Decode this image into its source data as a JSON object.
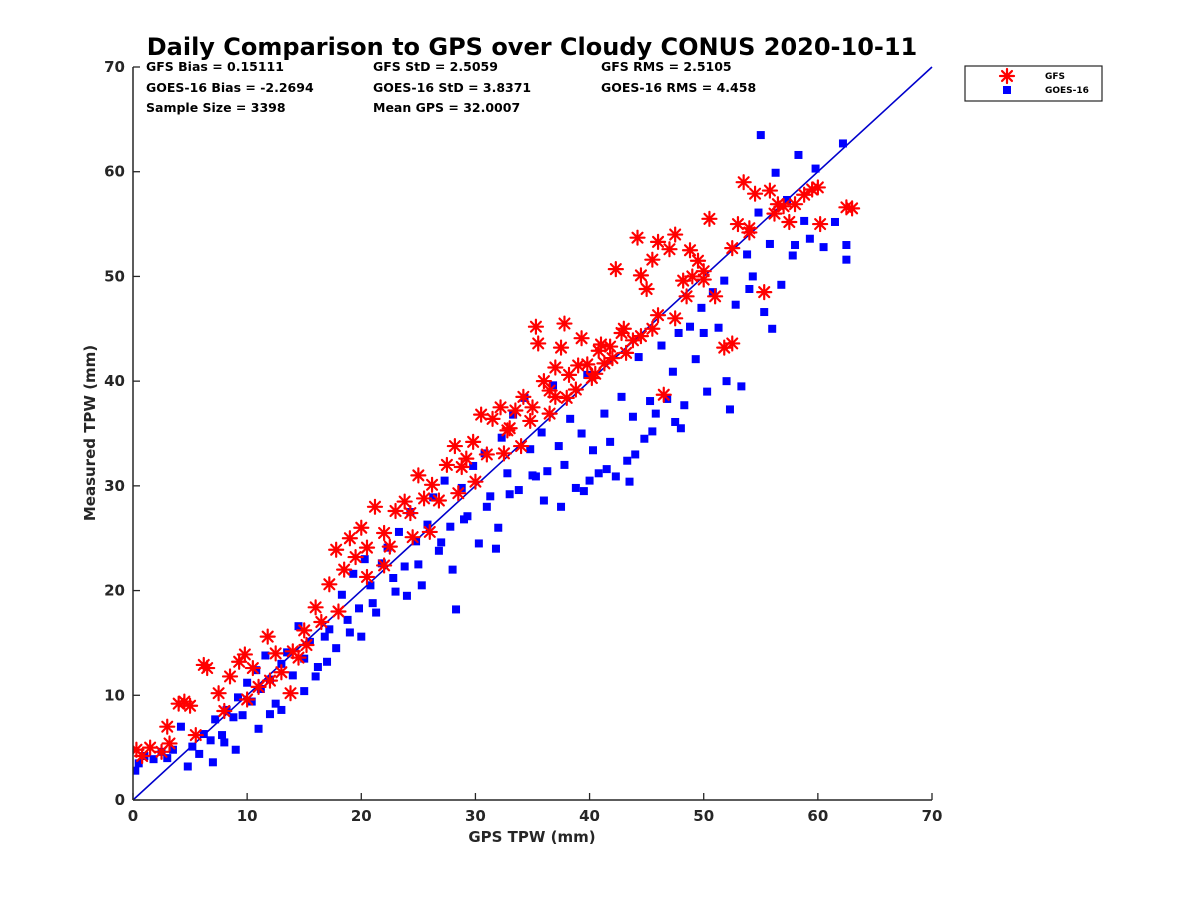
{
  "chart_data": {
    "type": "scatter",
    "title": "Daily Comparison to GPS over Cloudy CONUS 2020-10-11",
    "xlabel": "GPS TPW (mm)",
    "ylabel": "Measured TPW (mm)",
    "xlim": [
      0,
      70
    ],
    "ylim": [
      0,
      70
    ],
    "xticks": [
      "0",
      "10",
      "20",
      "30",
      "40",
      "50",
      "60",
      "70"
    ],
    "yticks": [
      "0",
      "10",
      "20",
      "30",
      "40",
      "50",
      "60",
      "70"
    ],
    "grid": false,
    "legend_position": "outside-top-right",
    "reference_line": {
      "x": [
        0,
        70
      ],
      "y": [
        0,
        70
      ],
      "color": "#0000cc"
    },
    "stats": [
      "GFS Bias = 0.15111",
      "GFS StD = 2.5059",
      "GFS RMS = 2.5105",
      "GOES-16 Bias = -2.2694",
      "GOES-16 StD = 3.8371",
      "GOES-16 RMS = 4.458",
      "Sample Size = 3398",
      "Mean GPS = 32.0007"
    ],
    "series": [
      {
        "name": "GFS",
        "marker": "asterisk",
        "color": "#ff0000",
        "points": [
          [
            0.3,
            4.8
          ],
          [
            0.8,
            4.2
          ],
          [
            1.5,
            5.0
          ],
          [
            2.5,
            4.6
          ],
          [
            3.2,
            5.4
          ],
          [
            4.0,
            9.2
          ],
          [
            4.5,
            9.4
          ],
          [
            5.0,
            9.0
          ],
          [
            6.2,
            12.9
          ],
          [
            6.5,
            12.6
          ],
          [
            7.5,
            10.2
          ],
          [
            8.5,
            11.8
          ],
          [
            9.3,
            13.2
          ],
          [
            9.8,
            13.9
          ],
          [
            10.5,
            12.6
          ],
          [
            11.0,
            10.8
          ],
          [
            11.8,
            15.6
          ],
          [
            12.5,
            14.0
          ],
          [
            13.0,
            12.2
          ],
          [
            13.8,
            10.2
          ],
          [
            14.5,
            13.6
          ],
          [
            15.2,
            14.8
          ],
          [
            16.0,
            18.4
          ],
          [
            16.5,
            17.0
          ],
          [
            17.2,
            20.6
          ],
          [
            17.8,
            23.9
          ],
          [
            18.5,
            22.0
          ],
          [
            19.0,
            25.0
          ],
          [
            19.5,
            23.2
          ],
          [
            20.0,
            26.0
          ],
          [
            20.5,
            24.1
          ],
          [
            21.2,
            28.0
          ],
          [
            22.0,
            25.5
          ],
          [
            22.5,
            24.2
          ],
          [
            23.0,
            27.6
          ],
          [
            23.8,
            28.5
          ],
          [
            24.3,
            27.4
          ],
          [
            25.0,
            31.0
          ],
          [
            25.5,
            28.8
          ],
          [
            26.2,
            30.1
          ],
          [
            26.8,
            28.6
          ],
          [
            27.5,
            32.0
          ],
          [
            28.2,
            33.8
          ],
          [
            28.8,
            31.8
          ],
          [
            29.2,
            32.6
          ],
          [
            29.8,
            34.2
          ],
          [
            30.5,
            36.8
          ],
          [
            31.0,
            33.0
          ],
          [
            31.5,
            36.4
          ],
          [
            32.2,
            37.5
          ],
          [
            32.8,
            35.3
          ],
          [
            33.5,
            37.2
          ],
          [
            34.2,
            38.5
          ],
          [
            34.8,
            36.2
          ],
          [
            35.3,
            45.2
          ],
          [
            35.5,
            43.6
          ],
          [
            36.0,
            40.0
          ],
          [
            36.5,
            39.1
          ],
          [
            37.0,
            41.3
          ],
          [
            37.5,
            43.2
          ],
          [
            37.8,
            45.5
          ],
          [
            38.2,
            40.6
          ],
          [
            38.8,
            39.2
          ],
          [
            39.3,
            44.1
          ],
          [
            39.8,
            41.6
          ],
          [
            40.2,
            40.3
          ],
          [
            40.8,
            42.9
          ],
          [
            41.3,
            41.7
          ],
          [
            41.8,
            43.3
          ],
          [
            42.3,
            50.7
          ],
          [
            42.8,
            44.6
          ],
          [
            43.2,
            42.7
          ],
          [
            43.8,
            43.9
          ],
          [
            44.2,
            53.7
          ],
          [
            44.5,
            50.1
          ],
          [
            45.0,
            48.8
          ],
          [
            45.5,
            51.6
          ],
          [
            46.0,
            53.3
          ],
          [
            46.5,
            38.7
          ],
          [
            47.0,
            52.6
          ],
          [
            47.5,
            54.0
          ],
          [
            48.2,
            49.6
          ],
          [
            48.8,
            52.5
          ],
          [
            49.5,
            51.5
          ],
          [
            50.0,
            50.5
          ],
          [
            50.5,
            55.5
          ],
          [
            51.0,
            48.1
          ],
          [
            51.8,
            43.2
          ],
          [
            52.5,
            43.6
          ],
          [
            53.0,
            55.0
          ],
          [
            53.5,
            59.0
          ],
          [
            54.0,
            54.6
          ],
          [
            54.5,
            57.9
          ],
          [
            55.3,
            48.5
          ],
          [
            55.8,
            58.2
          ],
          [
            56.2,
            56.0
          ],
          [
            57.0,
            56.7
          ],
          [
            57.5,
            55.2
          ],
          [
            58.0,
            56.9
          ],
          [
            58.8,
            57.8
          ],
          [
            59.5,
            58.3
          ],
          [
            60.2,
            55.0
          ],
          [
            60.0,
            58.5
          ],
          [
            62.5,
            56.6
          ],
          [
            63.0,
            56.5
          ],
          [
            3.0,
            7.0
          ],
          [
            5.5,
            6.2
          ],
          [
            8.0,
            8.5
          ],
          [
            10.0,
            9.6
          ],
          [
            12.0,
            11.4
          ],
          [
            14.0,
            14.2
          ],
          [
            18.0,
            18.0
          ],
          [
            22.0,
            22.4
          ],
          [
            26.0,
            25.6
          ],
          [
            30.0,
            30.4
          ],
          [
            34.0,
            33.8
          ],
          [
            38.0,
            38.4
          ],
          [
            42.0,
            42.2
          ],
          [
            46.0,
            46.3
          ],
          [
            50.0,
            49.7
          ],
          [
            54.0,
            54.2
          ],
          [
            15.0,
            16.2
          ],
          [
            20.5,
            21.3
          ],
          [
            24.5,
            25.1
          ],
          [
            28.5,
            29.3
          ],
          [
            32.5,
            33.1
          ],
          [
            36.5,
            36.9
          ],
          [
            40.5,
            40.7
          ],
          [
            44.5,
            44.3
          ],
          [
            48.5,
            48.1
          ],
          [
            52.5,
            52.7
          ],
          [
            56.5,
            56.9
          ],
          [
            39.0,
            41.5
          ],
          [
            41.0,
            43.5
          ],
          [
            43.0,
            45.0
          ],
          [
            37.0,
            38.5
          ],
          [
            35.0,
            37.5
          ],
          [
            33.0,
            35.5
          ],
          [
            45.5,
            45.0
          ],
          [
            47.5,
            46.0
          ],
          [
            49.0,
            50.0
          ]
        ]
      },
      {
        "name": "GOES-16",
        "marker": "square",
        "color": "#0000ff",
        "points": [
          [
            0.2,
            2.8
          ],
          [
            0.5,
            3.5
          ],
          [
            1.0,
            4.2
          ],
          [
            1.8,
            3.9
          ],
          [
            2.5,
            4.6
          ],
          [
            3.0,
            4.0
          ],
          [
            3.5,
            4.8
          ],
          [
            4.2,
            7.0
          ],
          [
            4.8,
            3.2
          ],
          [
            5.2,
            5.1
          ],
          [
            5.8,
            4.4
          ],
          [
            6.2,
            6.3
          ],
          [
            6.8,
            5.7
          ],
          [
            7.2,
            7.7
          ],
          [
            7.8,
            6.2
          ],
          [
            8.2,
            8.6
          ],
          [
            8.8,
            7.9
          ],
          [
            9.2,
            9.8
          ],
          [
            9.6,
            8.1
          ],
          [
            10.0,
            11.2
          ],
          [
            10.4,
            9.4
          ],
          [
            10.8,
            12.4
          ],
          [
            11.2,
            10.6
          ],
          [
            11.6,
            13.8
          ],
          [
            12.0,
            11.5
          ],
          [
            12.5,
            9.2
          ],
          [
            13.0,
            13.0
          ],
          [
            13.5,
            14.1
          ],
          [
            14.0,
            11.9
          ],
          [
            14.5,
            16.6
          ],
          [
            15.0,
            13.5
          ],
          [
            15.5,
            15.1
          ],
          [
            16.2,
            12.7
          ],
          [
            16.8,
            15.6
          ],
          [
            17.2,
            16.3
          ],
          [
            17.8,
            14.5
          ],
          [
            18.3,
            19.6
          ],
          [
            18.8,
            17.2
          ],
          [
            19.3,
            21.6
          ],
          [
            19.8,
            18.3
          ],
          [
            20.3,
            23.0
          ],
          [
            20.8,
            20.5
          ],
          [
            21.3,
            17.9
          ],
          [
            21.8,
            22.6
          ],
          [
            22.3,
            24.1
          ],
          [
            22.8,
            21.2
          ],
          [
            23.3,
            25.6
          ],
          [
            23.8,
            22.3
          ],
          [
            24.3,
            27.5
          ],
          [
            24.8,
            24.7
          ],
          [
            25.3,
            20.5
          ],
          [
            25.8,
            26.3
          ],
          [
            26.3,
            28.9
          ],
          [
            26.8,
            23.8
          ],
          [
            27.3,
            30.5
          ],
          [
            27.8,
            26.1
          ],
          [
            28.3,
            18.2
          ],
          [
            28.8,
            29.8
          ],
          [
            29.3,
            27.1
          ],
          [
            29.8,
            31.9
          ],
          [
            30.3,
            24.5
          ],
          [
            30.8,
            33.1
          ],
          [
            31.3,
            29.0
          ],
          [
            31.8,
            24.0
          ],
          [
            32.3,
            34.6
          ],
          [
            32.8,
            31.2
          ],
          [
            33.3,
            36.8
          ],
          [
            33.8,
            29.6
          ],
          [
            34.3,
            38.4
          ],
          [
            34.8,
            33.5
          ],
          [
            35.3,
            30.9
          ],
          [
            35.8,
            35.1
          ],
          [
            36.3,
            31.4
          ],
          [
            36.8,
            39.6
          ],
          [
            37.3,
            33.8
          ],
          [
            37.8,
            32.0
          ],
          [
            38.3,
            36.4
          ],
          [
            38.8,
            29.8
          ],
          [
            39.3,
            35.0
          ],
          [
            39.8,
            40.6
          ],
          [
            40.3,
            33.4
          ],
          [
            40.8,
            31.2
          ],
          [
            41.3,
            36.9
          ],
          [
            41.8,
            34.2
          ],
          [
            42.3,
            30.9
          ],
          [
            42.8,
            38.5
          ],
          [
            43.3,
            32.4
          ],
          [
            43.8,
            36.6
          ],
          [
            44.3,
            42.3
          ],
          [
            44.8,
            34.5
          ],
          [
            45.3,
            38.1
          ],
          [
            45.8,
            36.9
          ],
          [
            46.3,
            43.4
          ],
          [
            46.8,
            38.3
          ],
          [
            47.3,
            40.9
          ],
          [
            47.8,
            44.6
          ],
          [
            48.3,
            37.7
          ],
          [
            48.8,
            45.2
          ],
          [
            49.3,
            42.1
          ],
          [
            49.8,
            47.0
          ],
          [
            50.3,
            39.0
          ],
          [
            50.8,
            48.5
          ],
          [
            51.3,
            45.1
          ],
          [
            51.8,
            49.6
          ],
          [
            52.3,
            37.3
          ],
          [
            52.8,
            47.3
          ],
          [
            53.3,
            39.5
          ],
          [
            53.8,
            52.1
          ],
          [
            54.3,
            50.0
          ],
          [
            54.8,
            56.1
          ],
          [
            55.0,
            63.5
          ],
          [
            55.3,
            46.6
          ],
          [
            55.8,
            53.1
          ],
          [
            56.3,
            59.9
          ],
          [
            56.8,
            49.2
          ],
          [
            57.3,
            57.3
          ],
          [
            57.8,
            52.0
          ],
          [
            58.3,
            61.6
          ],
          [
            58.8,
            55.3
          ],
          [
            59.3,
            53.6
          ],
          [
            59.8,
            60.3
          ],
          [
            60.5,
            52.8
          ],
          [
            61.5,
            55.2
          ],
          [
            62.2,
            62.7
          ],
          [
            62.5,
            53.0
          ],
          [
            62.5,
            51.6
          ],
          [
            8.0,
            5.5
          ],
          [
            12.0,
            8.2
          ],
          [
            16.0,
            11.8
          ],
          [
            20.0,
            15.6
          ],
          [
            24.0,
            19.5
          ],
          [
            28.0,
            22.0
          ],
          [
            32.0,
            26.0
          ],
          [
            36.0,
            28.6
          ],
          [
            40.0,
            30.5
          ],
          [
            44.0,
            33.0
          ],
          [
            48.0,
            35.5
          ],
          [
            52.0,
            40.0
          ],
          [
            56.0,
            45.0
          ],
          [
            37.5,
            28.0
          ],
          [
            39.5,
            29.5
          ],
          [
            41.5,
            31.6
          ],
          [
            43.5,
            30.4
          ],
          [
            45.5,
            35.2
          ],
          [
            47.5,
            36.1
          ],
          [
            7.0,
            3.6
          ],
          [
            9.0,
            4.8
          ],
          [
            11.0,
            6.8
          ],
          [
            13.0,
            8.6
          ],
          [
            15.0,
            10.4
          ],
          [
            17.0,
            13.2
          ],
          [
            19.0,
            16.0
          ],
          [
            21.0,
            18.8
          ],
          [
            23.0,
            19.9
          ],
          [
            25.0,
            22.5
          ],
          [
            27.0,
            24.6
          ],
          [
            29.0,
            26.8
          ],
          [
            31.0,
            28.0
          ],
          [
            33.0,
            29.2
          ],
          [
            35.0,
            31.0
          ],
          [
            50.0,
            44.6
          ],
          [
            54.0,
            48.8
          ],
          [
            58.0,
            53.0
          ]
        ]
      }
    ]
  }
}
